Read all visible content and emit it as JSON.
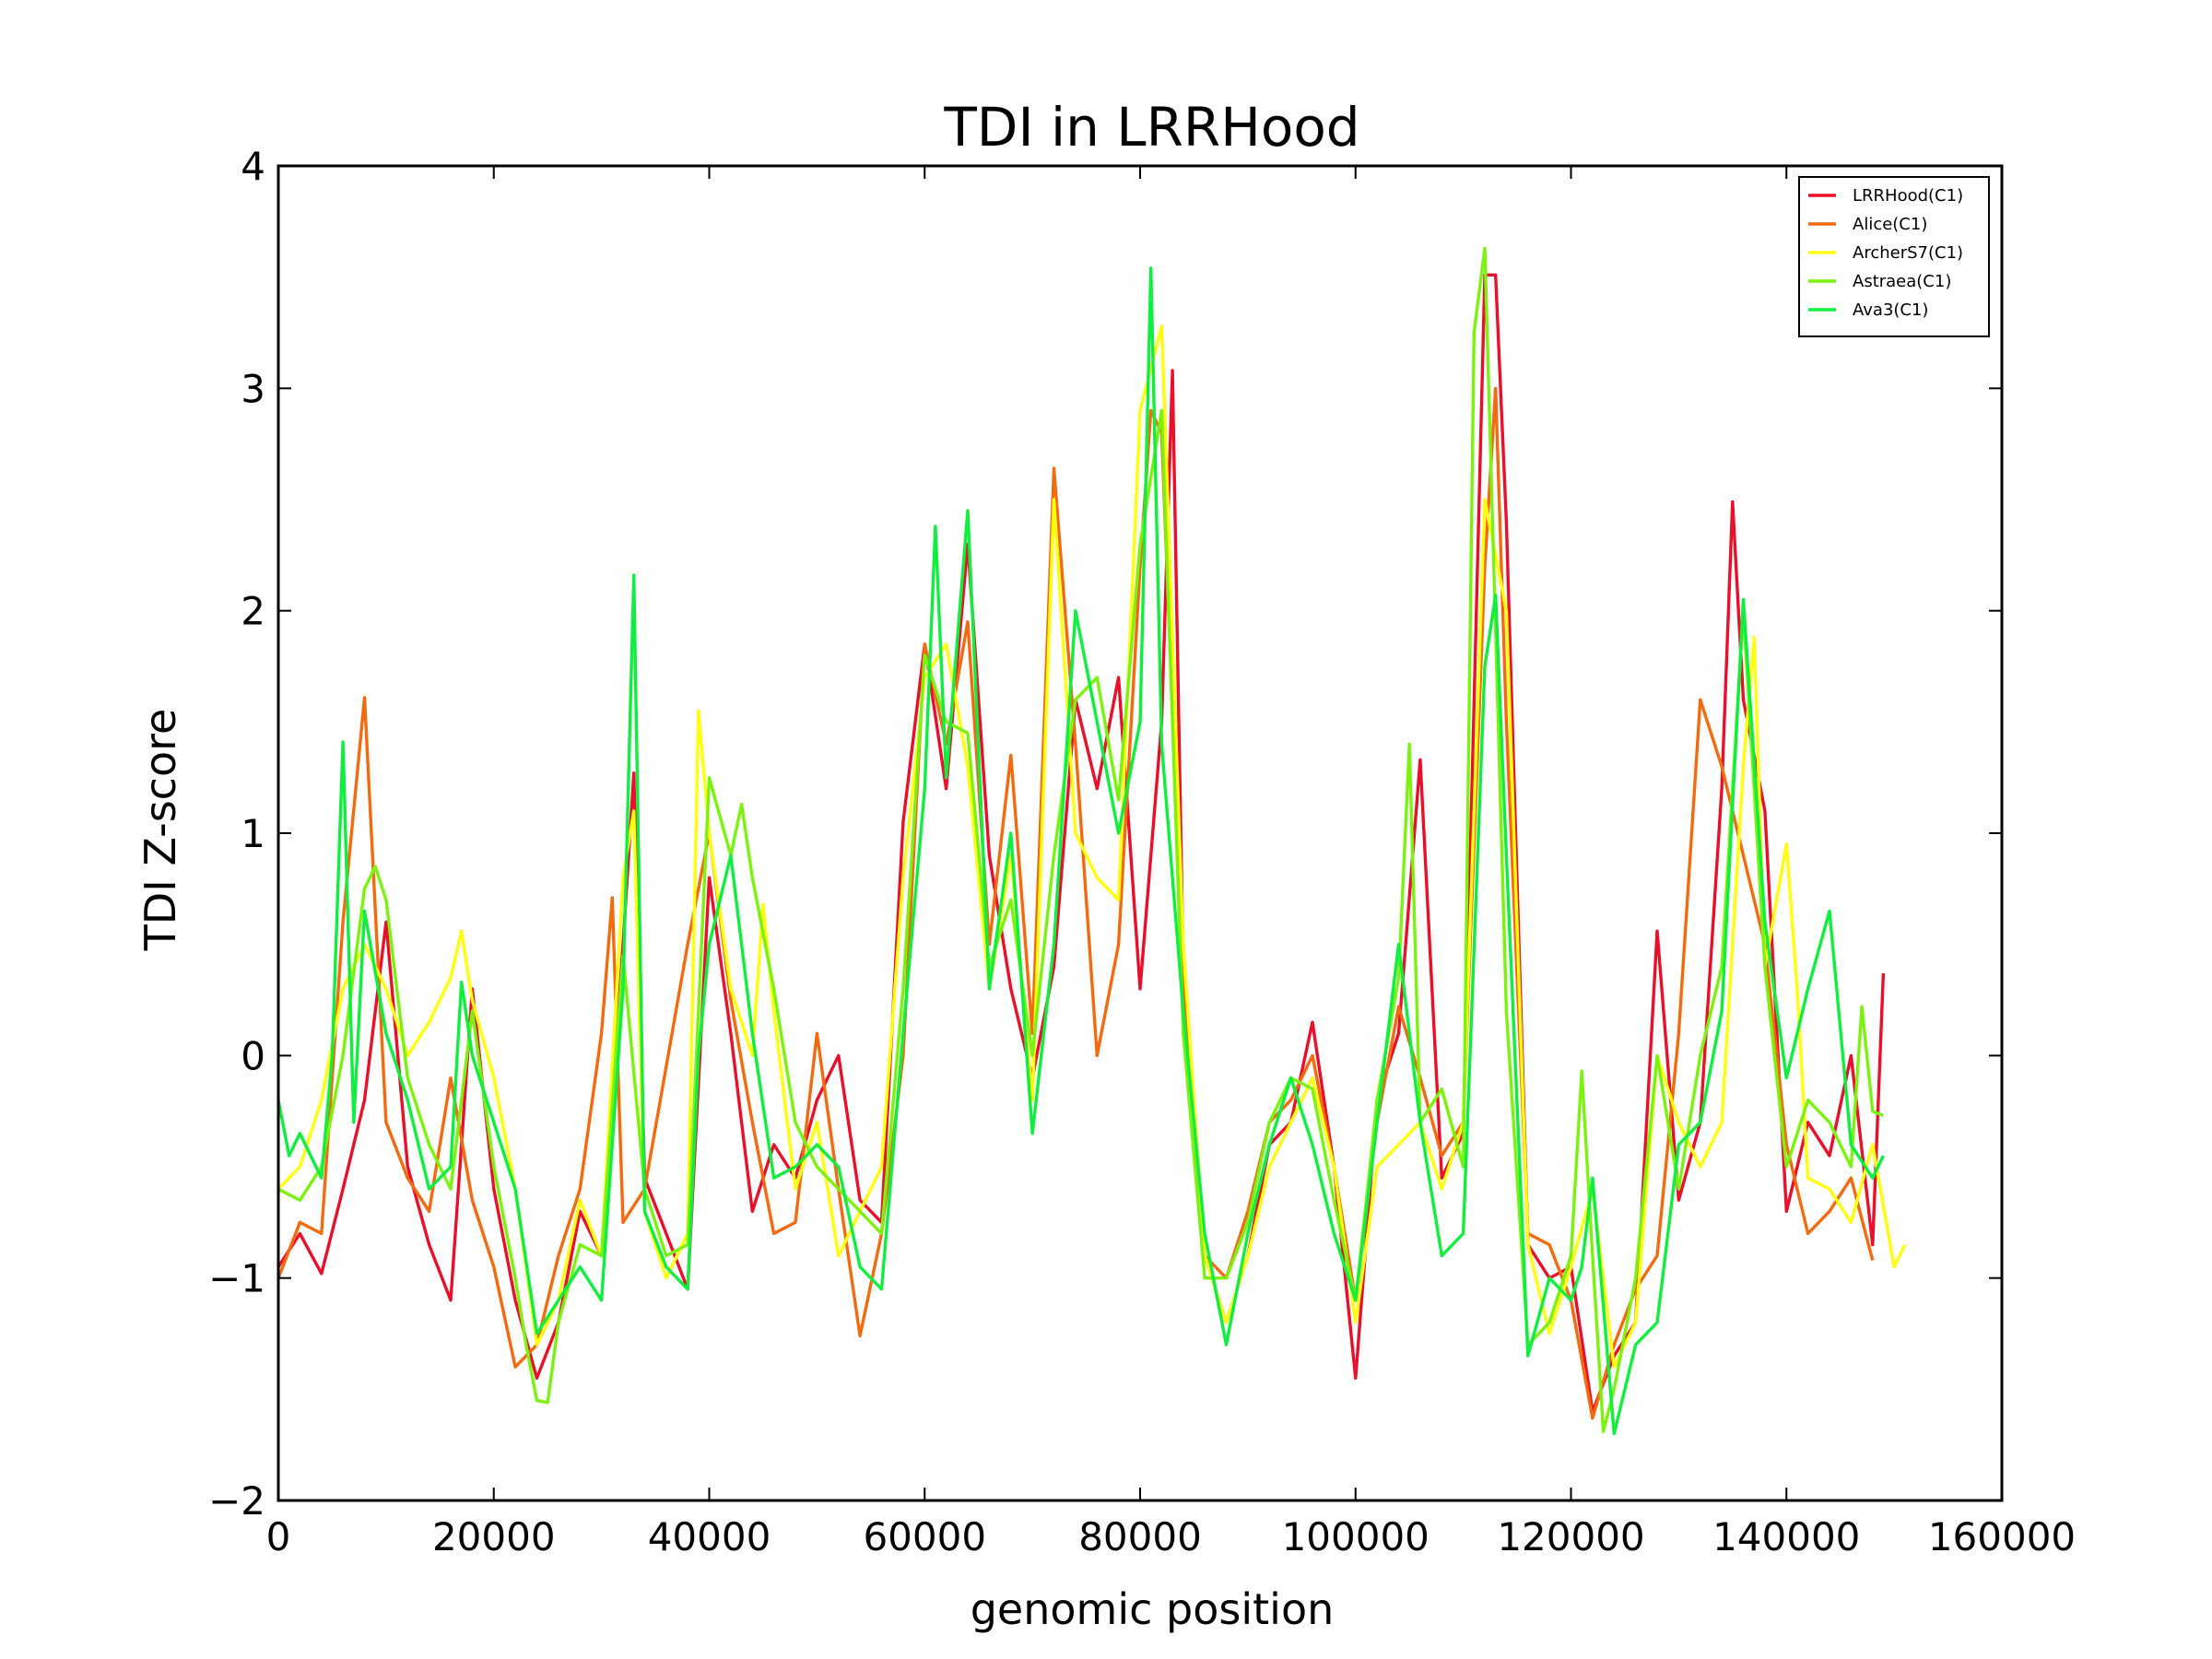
{
  "chart_data": {
    "type": "line",
    "title": "TDI in LRRHood",
    "xlabel": "genomic position",
    "ylabel": "TDI Z-score",
    "xlim": [
      0,
      160000
    ],
    "ylim": [
      -2,
      4
    ],
    "x_ticks": [
      0,
      20000,
      40000,
      60000,
      80000,
      100000,
      120000,
      140000,
      160000
    ],
    "x_tick_labels": [
      "0",
      "20000",
      "40000",
      "60000",
      "80000",
      "100000",
      "120000",
      "140000",
      "160000"
    ],
    "y_ticks": [
      -2,
      -1,
      0,
      1,
      2,
      3,
      4
    ],
    "y_tick_labels": [
      "−2",
      "−1",
      "0",
      "1",
      "2",
      "3",
      "4"
    ],
    "grid": false,
    "legend_position": "top-right",
    "series": [
      {
        "name": "LRRHood(C1)",
        "color": "#e8102a",
        "x": [
          0,
          2000,
          4000,
          6000,
          8000,
          10000,
          12000,
          14000,
          16000,
          18000,
          20000,
          22000,
          24000,
          26000,
          28000,
          30000,
          32000,
          33000,
          34000,
          36000,
          38000,
          40000,
          42000,
          44000,
          46000,
          48000,
          50000,
          52000,
          54000,
          56000,
          58000,
          60000,
          62000,
          64000,
          66000,
          68000,
          70000,
          72000,
          74000,
          76000,
          78000,
          80000,
          82000,
          83000,
          84000,
          86000,
          88000,
          90000,
          92000,
          94000,
          96000,
          98000,
          100000,
          102000,
          104000,
          106000,
          108000,
          110000,
          112000,
          113000,
          114000,
          116000,
          118000,
          120000,
          122000,
          124000,
          126000,
          128000,
          130000,
          132000,
          134000,
          135000,
          136000,
          138000,
          140000,
          142000,
          144000,
          146000,
          148000,
          149000
        ],
        "y": [
          -0.95,
          -0.8,
          -0.98,
          -0.6,
          -0.2,
          0.6,
          -0.5,
          -0.85,
          -1.1,
          0.3,
          -0.6,
          -1.1,
          -1.45,
          -1.2,
          -0.7,
          -0.9,
          0.5,
          1.27,
          -0.55,
          -0.8,
          -1.05,
          0.8,
          0.1,
          -0.7,
          -0.4,
          -0.55,
          -0.2,
          0.0,
          -0.65,
          -0.75,
          1.05,
          1.85,
          1.2,
          2.3,
          0.9,
          0.3,
          -0.1,
          0.4,
          1.6,
          1.2,
          1.7,
          0.3,
          1.5,
          3.08,
          0.4,
          -0.9,
          -1.2,
          -0.9,
          -0.4,
          -0.3,
          0.15,
          -0.5,
          -1.45,
          -0.2,
          0.1,
          1.33,
          -0.55,
          -0.35,
          3.51,
          3.51,
          2.4,
          -0.85,
          -1.0,
          -0.95,
          -1.6,
          -1.35,
          -1.2,
          0.56,
          -0.65,
          -0.3,
          1.2,
          2.49,
          1.6,
          1.1,
          -0.7,
          -0.3,
          -0.45,
          0.0,
          -0.85,
          0.37
        ]
      },
      {
        "name": "Alice(C1)",
        "color": "#f26b10",
        "x": [
          0,
          2000,
          4000,
          6000,
          8000,
          10000,
          12000,
          14000,
          16000,
          18000,
          20000,
          22000,
          24000,
          26000,
          28000,
          30000,
          31000,
          32000,
          34000,
          36000,
          38000,
          40000,
          42000,
          44000,
          46000,
          48000,
          50000,
          52000,
          54000,
          56000,
          58000,
          60000,
          62000,
          64000,
          66000,
          68000,
          70000,
          72000,
          74000,
          76000,
          78000,
          80000,
          81000,
          82000,
          84000,
          86000,
          88000,
          90000,
          92000,
          94000,
          96000,
          98000,
          100000,
          102000,
          104000,
          106000,
          108000,
          110000,
          112000,
          113000,
          114000,
          116000,
          118000,
          120000,
          122000,
          124000,
          126000,
          128000,
          130000,
          132000,
          134000,
          136000,
          138000,
          140000,
          142000,
          144000,
          146000,
          148000
        ],
        "y": [
          -1.0,
          -0.75,
          -0.8,
          0.6,
          1.61,
          -0.3,
          -0.55,
          -0.7,
          -0.1,
          -0.65,
          -0.95,
          -1.4,
          -1.3,
          -0.9,
          -0.6,
          0.1,
          0.71,
          -0.75,
          -0.6,
          -0.05,
          0.5,
          1.0,
          0.25,
          -0.3,
          -0.8,
          -0.75,
          0.1,
          -0.6,
          -1.26,
          -0.8,
          0.0,
          1.85,
          1.4,
          1.95,
          0.5,
          1.35,
          0.1,
          2.64,
          1.4,
          0.0,
          0.5,
          2.2,
          2.9,
          2.8,
          0.3,
          -0.9,
          -1.0,
          -0.7,
          -0.3,
          -0.2,
          0.0,
          -0.5,
          -1.1,
          -0.3,
          0.22,
          -0.1,
          -0.45,
          -0.3,
          2.2,
          3.0,
          1.5,
          -0.8,
          -0.85,
          -1.1,
          -1.63,
          -1.3,
          -1.05,
          -0.9,
          0.1,
          1.6,
          1.3,
          0.9,
          0.5,
          -0.4,
          -0.8,
          -0.7,
          -0.55,
          -0.92
        ]
      },
      {
        "name": "ArcherS7(C1)",
        "color": "#ffff10",
        "x": [
          0,
          2000,
          4000,
          6000,
          8000,
          10000,
          12000,
          14000,
          16000,
          17000,
          18000,
          20000,
          22000,
          24000,
          26000,
          28000,
          30000,
          32000,
          33000,
          34000,
          36000,
          38000,
          39000,
          40000,
          42000,
          44000,
          45000,
          46000,
          48000,
          50000,
          52000,
          54000,
          56000,
          58000,
          60000,
          62000,
          64000,
          66000,
          68000,
          70000,
          72000,
          74000,
          76000,
          78000,
          80000,
          82000,
          84000,
          86000,
          88000,
          90000,
          92000,
          94000,
          96000,
          98000,
          100000,
          102000,
          104000,
          106000,
          108000,
          110000,
          112000,
          114000,
          116000,
          118000,
          120000,
          122000,
          124000,
          126000,
          128000,
          130000,
          132000,
          134000,
          136000,
          137000,
          138000,
          140000,
          141000,
          142000,
          144000,
          146000,
          148000,
          150000,
          151000
        ],
        "y": [
          -0.6,
          -0.5,
          -0.2,
          0.3,
          0.5,
          0.3,
          0.0,
          0.15,
          0.35,
          0.56,
          0.25,
          -0.1,
          -0.6,
          -1.3,
          -1.1,
          -0.65,
          -0.9,
          0.8,
          1.1,
          -0.7,
          -1.0,
          -0.8,
          1.55,
          1.0,
          0.3,
          0.0,
          0.68,
          0.2,
          -0.6,
          -0.3,
          -0.9,
          -0.7,
          -0.5,
          0.8,
          1.7,
          1.85,
          1.3,
          0.3,
          0.9,
          -0.2,
          2.5,
          1.0,
          0.8,
          0.7,
          2.9,
          3.28,
          0.5,
          -0.9,
          -1.2,
          -0.9,
          -0.5,
          -0.3,
          -0.1,
          -0.5,
          -1.2,
          -0.5,
          -0.4,
          -0.3,
          -0.6,
          -0.3,
          2.5,
          2.0,
          -0.85,
          -1.25,
          -0.95,
          -0.6,
          -1.4,
          -1.2,
          0.0,
          -0.3,
          -0.5,
          -0.3,
          1.3,
          1.88,
          0.4,
          0.95,
          0.3,
          -0.55,
          -0.6,
          -0.75,
          -0.4,
          -0.95,
          -0.85
        ]
      },
      {
        "name": "Astraea(C1)",
        "color": "#7cf210",
        "x": [
          0,
          2000,
          4000,
          6000,
          8000,
          9000,
          10000,
          12000,
          14000,
          16000,
          18000,
          20000,
          22000,
          23000,
          24000,
          25000,
          26000,
          28000,
          30000,
          32000,
          34000,
          36000,
          38000,
          40000,
          42000,
          43000,
          44000,
          46000,
          48000,
          50000,
          52000,
          54000,
          56000,
          58000,
          60000,
          62000,
          64000,
          66000,
          68000,
          70000,
          72000,
          74000,
          76000,
          78000,
          80000,
          82000,
          84000,
          86000,
          88000,
          90000,
          92000,
          94000,
          96000,
          98000,
          100000,
          102000,
          104000,
          105000,
          106000,
          108000,
          110000,
          111000,
          112000,
          114000,
          116000,
          118000,
          120000,
          121000,
          122000,
          123000,
          124000,
          126000,
          128000,
          130000,
          132000,
          134000,
          136000,
          138000,
          140000,
          142000,
          144000,
          146000,
          147000,
          148000,
          149000
        ],
        "y": [
          -0.6,
          -0.65,
          -0.5,
          0.0,
          0.75,
          0.85,
          0.7,
          -0.1,
          -0.4,
          -0.6,
          0.2,
          -0.5,
          -1.0,
          -1.3,
          -1.55,
          -1.56,
          -1.2,
          -0.85,
          -0.9,
          0.45,
          -0.6,
          -0.9,
          -0.85,
          1.25,
          0.9,
          1.13,
          0.8,
          0.3,
          -0.3,
          -0.5,
          -0.6,
          -0.7,
          -0.8,
          0.3,
          1.8,
          1.5,
          1.45,
          0.4,
          0.7,
          0.0,
          0.9,
          1.6,
          1.7,
          1.15,
          2.3,
          2.9,
          0.1,
          -1.0,
          -1.0,
          -0.75,
          -0.3,
          -0.1,
          -0.15,
          -0.65,
          -1.1,
          -0.2,
          0.35,
          1.4,
          -0.3,
          -0.15,
          -0.5,
          3.25,
          3.63,
          0.2,
          -1.3,
          -1.2,
          -0.9,
          -0.07,
          -0.9,
          -1.69,
          -1.5,
          -1.0,
          0.0,
          -0.6,
          0.0,
          0.4,
          2.0,
          0.4,
          -0.5,
          -0.2,
          -0.3,
          -0.5,
          0.22,
          -0.25,
          -0.27
        ]
      },
      {
        "name": "Ava3(C1)",
        "color": "#10ee40",
        "x": [
          0,
          1000,
          2000,
          4000,
          5000,
          6000,
          7000,
          8000,
          10000,
          12000,
          14000,
          16000,
          17000,
          18000,
          20000,
          22000,
          24000,
          26000,
          28000,
          30000,
          32000,
          33000,
          34000,
          36000,
          38000,
          39000,
          40000,
          42000,
          44000,
          46000,
          48000,
          50000,
          52000,
          54000,
          56000,
          58000,
          60000,
          61000,
          62000,
          64000,
          66000,
          68000,
          70000,
          72000,
          74000,
          76000,
          78000,
          80000,
          81000,
          82000,
          84000,
          86000,
          88000,
          90000,
          92000,
          94000,
          96000,
          98000,
          100000,
          102000,
          104000,
          106000,
          108000,
          110000,
          112000,
          113000,
          114000,
          116000,
          118000,
          120000,
          121000,
          122000,
          124000,
          126000,
          128000,
          130000,
          132000,
          134000,
          136000,
          138000,
          140000,
          142000,
          144000,
          146000,
          148000,
          149000
        ],
        "y": [
          -0.2,
          -0.45,
          -0.35,
          -0.55,
          0.0,
          1.41,
          -0.3,
          0.65,
          0.1,
          -0.2,
          -0.6,
          -0.5,
          0.33,
          0.0,
          -0.3,
          -0.6,
          -1.25,
          -1.1,
          -0.95,
          -1.1,
          0.3,
          2.16,
          -0.7,
          -0.95,
          -1.05,
          0.0,
          0.5,
          0.9,
          0.1,
          -0.55,
          -0.5,
          -0.4,
          -0.5,
          -0.95,
          -1.05,
          0.1,
          1.2,
          2.38,
          1.25,
          2.45,
          0.3,
          1.0,
          -0.35,
          0.5,
          2.0,
          1.5,
          1.0,
          1.5,
          3.54,
          1.4,
          0.2,
          -0.8,
          -1.3,
          -0.8,
          -0.4,
          -0.1,
          -0.4,
          -0.8,
          -1.1,
          -0.3,
          0.5,
          -0.3,
          -0.9,
          -0.8,
          1.75,
          2.07,
          0.9,
          -1.35,
          -1.0,
          -1.1,
          -0.95,
          -0.55,
          -1.7,
          -1.3,
          -1.2,
          -0.4,
          -0.3,
          0.2,
          2.05,
          0.6,
          -0.1,
          0.3,
          0.65,
          -0.4,
          -0.55,
          -0.45
        ]
      }
    ]
  }
}
